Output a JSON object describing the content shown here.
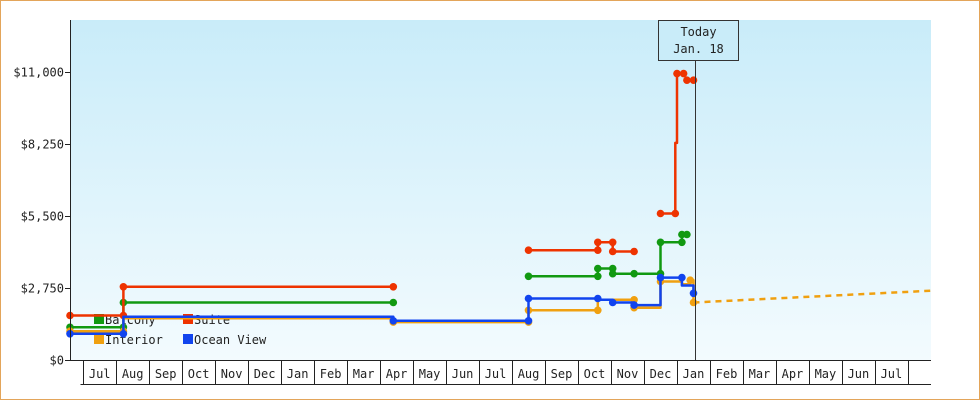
{
  "chart_data": {
    "type": "line",
    "title": "",
    "xlabel": "",
    "ylabel": "",
    "ylim": [
      0,
      13000
    ],
    "y_ticks": [
      {
        "value": 0,
        "label": "$0"
      },
      {
        "value": 2750,
        "label": "$2,750"
      },
      {
        "value": 5500,
        "label": "$5,500"
      },
      {
        "value": 8250,
        "label": "$8,250"
      },
      {
        "value": 11000,
        "label": "$11,000"
      }
    ],
    "x_unit": "months since Jul (year 1)",
    "xlim": [
      -0.9,
      25.2
    ],
    "month_labels": [
      "Jul",
      "Aug",
      "Sep",
      "Oct",
      "Nov",
      "Dec",
      "Jan",
      "Feb",
      "Mar",
      "Apr",
      "May",
      "Jun",
      "Jul",
      "Aug",
      "Sep",
      "Oct",
      "Nov",
      "Dec",
      "Jan",
      "Feb",
      "Mar",
      "Apr",
      "May",
      "Jun",
      "Jul"
    ],
    "today": {
      "line1": "Today",
      "line2": "Jan. 18",
      "x": 18.05
    },
    "grid": false,
    "legend_placement": "bottom-left",
    "series": [
      {
        "name": "Balcony",
        "color": "#119911",
        "segments": [
          [
            [
              -0.9,
              1250
            ],
            [
              0.72,
              1250
            ],
            [
              0.72,
              2200
            ],
            [
              8.9,
              2200
            ]
          ],
          [
            [
              13.0,
              3200
            ],
            [
              15.1,
              3200
            ],
            [
              15.1,
              3500
            ],
            [
              15.55,
              3500
            ],
            [
              15.55,
              3300
            ],
            [
              16.2,
              3300
            ],
            [
              16.2,
              3300
            ],
            [
              17.0,
              3300
            ],
            [
              17.0,
              4500
            ],
            [
              17.65,
              4500
            ],
            [
              17.65,
              4800
            ],
            [
              17.8,
              4800
            ]
          ]
        ],
        "markers": [
          [
            -0.9,
            1250
          ],
          [
            0.72,
            1250
          ],
          [
            0.72,
            2200
          ],
          [
            8.9,
            2200
          ],
          [
            13.0,
            3200
          ],
          [
            15.1,
            3200
          ],
          [
            15.1,
            3500
          ],
          [
            15.55,
            3500
          ],
          [
            15.55,
            3300
          ],
          [
            16.2,
            3300
          ],
          [
            17.0,
            3300
          ],
          [
            17.0,
            4500
          ],
          [
            17.65,
            4500
          ],
          [
            17.65,
            4800
          ],
          [
            17.8,
            4800
          ]
        ]
      },
      {
        "name": "Suite",
        "color": "#ee3300",
        "segments": [
          [
            [
              -0.9,
              1700
            ],
            [
              0.72,
              1700
            ],
            [
              0.72,
              2800
            ],
            [
              8.9,
              2800
            ]
          ],
          [
            [
              13.0,
              4200
            ],
            [
              15.1,
              4200
            ],
            [
              15.1,
              4500
            ],
            [
              15.55,
              4500
            ],
            [
              15.55,
              4150
            ],
            [
              16.2,
              4150
            ]
          ],
          [
            [
              17.0,
              5600
            ],
            [
              17.45,
              5600
            ],
            [
              17.45,
              8300
            ],
            [
              17.5,
              8300
            ],
            [
              17.5,
              10950
            ],
            [
              17.7,
              10950
            ]
          ],
          [
            [
              17.8,
              10700
            ],
            [
              18.0,
              10700
            ]
          ]
        ],
        "markers": [
          [
            -0.9,
            1700
          ],
          [
            0.72,
            1700
          ],
          [
            0.72,
            2800
          ],
          [
            8.9,
            2800
          ],
          [
            13.0,
            4200
          ],
          [
            15.1,
            4200
          ],
          [
            15.1,
            4500
          ],
          [
            15.55,
            4500
          ],
          [
            15.55,
            4150
          ],
          [
            16.2,
            4150
          ],
          [
            17.0,
            5600
          ],
          [
            17.45,
            5600
          ],
          [
            17.5,
            10950
          ],
          [
            17.7,
            10950
          ],
          [
            17.8,
            10700
          ],
          [
            18.0,
            10700
          ]
        ]
      },
      {
        "name": "Interior",
        "color": "#f0a010",
        "segments": [
          [
            [
              -0.9,
              1100
            ],
            [
              0.72,
              1100
            ],
            [
              0.72,
              1600
            ],
            [
              8.9,
              1600
            ],
            [
              8.9,
              1450
            ],
            [
              13.0,
              1450
            ],
            [
              13.0,
              1900
            ],
            [
              15.1,
              1900
            ],
            [
              15.1,
              2300
            ],
            [
              16.2,
              2300
            ],
            [
              16.2,
              2000
            ],
            [
              17.0,
              2000
            ],
            [
              17.0,
              3000
            ],
            [
              17.65,
              3000
            ],
            [
              17.65,
              2900
            ],
            [
              17.9,
              2900
            ],
            [
              17.9,
              3050
            ],
            [
              18.0,
              3050
            ],
            [
              18.0,
              2200
            ]
          ]
        ],
        "markers": [
          [
            -0.9,
            1100
          ],
          [
            0.72,
            1100
          ],
          [
            8.9,
            1450
          ],
          [
            13.0,
            1450
          ],
          [
            13.0,
            1900
          ],
          [
            15.1,
            1900
          ],
          [
            16.2,
            2300
          ],
          [
            16.2,
            2000
          ],
          [
            17.0,
            3000
          ],
          [
            17.9,
            3050
          ],
          [
            18.0,
            2200
          ]
        ]
      },
      {
        "name": "Ocean View",
        "color": "#1144ee",
        "segments": [
          [
            [
              -0.9,
              1000
            ],
            [
              0.72,
              1000
            ],
            [
              0.72,
              1650
            ],
            [
              8.9,
              1650
            ],
            [
              8.9,
              1500
            ],
            [
              13.0,
              1500
            ],
            [
              13.0,
              2350
            ],
            [
              15.1,
              2350
            ],
            [
              15.1,
              2300
            ],
            [
              15.55,
              2300
            ],
            [
              15.55,
              2200
            ],
            [
              16.2,
              2200
            ],
            [
              16.2,
              2100
            ],
            [
              17.0,
              2100
            ],
            [
              17.0,
              3150
            ],
            [
              17.65,
              3150
            ],
            [
              17.65,
              2850
            ],
            [
              18.0,
              2850
            ],
            [
              18.0,
              2550
            ]
          ]
        ],
        "markers": [
          [
            -0.9,
            1000
          ],
          [
            0.72,
            1000
          ],
          [
            8.9,
            1500
          ],
          [
            13.0,
            1500
          ],
          [
            13.0,
            2350
          ],
          [
            15.1,
            2350
          ],
          [
            15.55,
            2200
          ],
          [
            16.2,
            2100
          ],
          [
            17.0,
            3150
          ],
          [
            17.65,
            3150
          ],
          [
            18.0,
            2550
          ]
        ]
      }
    ],
    "forecast": {
      "series": "Interior",
      "color": "#f0a010",
      "points": [
        [
          18.0,
          2200
        ],
        [
          25.2,
          2650
        ]
      ]
    }
  }
}
